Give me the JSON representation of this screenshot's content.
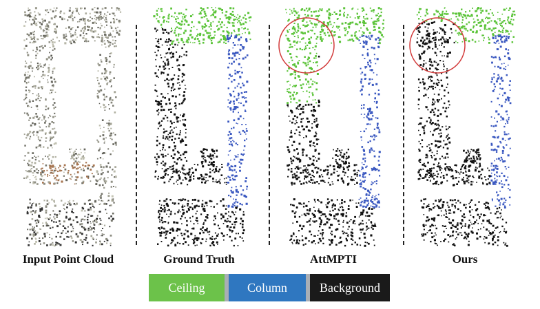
{
  "panels": [
    {
      "id": "input",
      "caption": "Input Point Cloud",
      "mode": "input",
      "highlight": false
    },
    {
      "id": "gt",
      "caption": "Ground Truth",
      "mode": "gt",
      "highlight": false
    },
    {
      "id": "att",
      "caption": "AttMPTI",
      "mode": "att",
      "highlight": true
    },
    {
      "id": "ours",
      "caption": "Ours",
      "mode": "ours",
      "highlight": true
    }
  ],
  "legend": [
    {
      "label": "Ceiling",
      "color": "#6cc24a"
    },
    {
      "label": "Column",
      "color": "#2f77c0"
    },
    {
      "label": "Background",
      "color": "#1a1a1a"
    }
  ],
  "colors": {
    "ceiling": "#5cc43a",
    "column": "#3a58c0",
    "background": "#111111",
    "input": "#8b8b80",
    "input_warm": "#a77550",
    "highlight_circle": "#d23a3a"
  }
}
